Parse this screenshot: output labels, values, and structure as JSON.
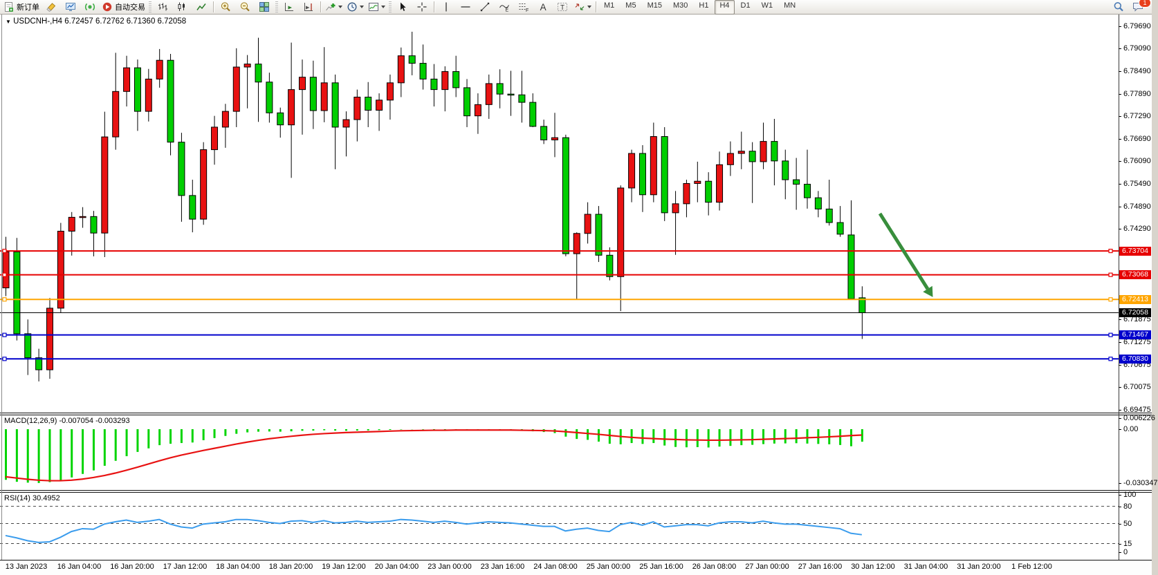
{
  "toolbar": {
    "groups": [
      {
        "items": [
          {
            "name": "new-order-button",
            "icon": "new-order-icon",
            "label": "新订单"
          },
          {
            "name": "eraser-button",
            "icon": "eraser-icon"
          },
          {
            "name": "expert-terminal-button",
            "icon": "expert-terminal-icon"
          },
          {
            "name": "signals-button",
            "icon": "signal-icon"
          },
          {
            "name": "auto-trading-button",
            "icon": "auto-trading-icon",
            "label": "自动交易"
          }
        ]
      },
      {
        "items": [
          {
            "name": "bar-chart-mode-button",
            "icon": "bar-chart-icon"
          },
          {
            "name": "candlestick-mode-button",
            "icon": "candlestick-icon"
          },
          {
            "name": "line-chart-mode-button",
            "icon": "line-chart-icon"
          }
        ]
      },
      {
        "items": [
          {
            "name": "zoom-in-button",
            "icon": "zoom-in-icon"
          },
          {
            "name": "zoom-out-button",
            "icon": "zoom-out-icon"
          },
          {
            "name": "tile-windows-button",
            "icon": "tile-windows-icon"
          }
        ]
      },
      {
        "items": [
          {
            "name": "auto-scroll-button",
            "icon": "auto-scroll-icon"
          },
          {
            "name": "chart-shift-button",
            "icon": "chart-shift-icon"
          }
        ]
      },
      {
        "items": [
          {
            "name": "indicators-button",
            "icon": "indicators-icon",
            "dropdown": true
          },
          {
            "name": "periods-button",
            "icon": "clock-icon",
            "dropdown": true
          },
          {
            "name": "templates-button",
            "icon": "template-icon",
            "dropdown": true
          }
        ]
      },
      {
        "items": [
          {
            "name": "cursor-tool-button",
            "icon": "cursor-icon"
          },
          {
            "name": "crosshair-tool-button",
            "icon": "crosshair-icon"
          }
        ]
      },
      {
        "items": [
          {
            "name": "vertical-line-tool-button",
            "icon": "vline-icon"
          },
          {
            "name": "horizontal-line-tool-button",
            "icon": "hline-icon"
          },
          {
            "name": "trendline-tool-button",
            "icon": "trendline-icon"
          },
          {
            "name": "equidistant-channel-tool-button",
            "icon": "channel-icon"
          },
          {
            "name": "fibonacci-tool-button",
            "icon": "fibonacci-icon"
          },
          {
            "name": "text-tool-button",
            "icon": "text-icon"
          },
          {
            "name": "label-tool-button",
            "icon": "label-icon"
          },
          {
            "name": "arrows-tool-button",
            "icon": "arrows-icon",
            "dropdown": true
          }
        ]
      }
    ],
    "timeframes": [
      "M1",
      "M5",
      "M15",
      "M30",
      "H1",
      "H4",
      "D1",
      "W1",
      "MN"
    ],
    "active_timeframe": "H4",
    "notification_count": "1"
  },
  "chart": {
    "symbol": "USDCNH-,H4",
    "ohlc_line": "6.72457 6.72762 6.71360 6.72058",
    "macd_label": "MACD(12,26,9)",
    "macd_values": "-0.007054 -0.003293",
    "rsi_label": "RSI(14)",
    "rsi_value": "30.4952",
    "colors": {
      "bull": "#e81212",
      "bear": "#00ce00",
      "wick": "#000000",
      "macd_hist": "#00d400",
      "macd_signal": "#e81212",
      "rsi_line": "#3a9ced",
      "line_red": "#e60000",
      "line_orange": "#ffa500",
      "line_blue": "#0000cc",
      "current_price_line": "#000000",
      "arrow": "#388e3c"
    }
  },
  "chart_data": {
    "type": "candlestick",
    "title": "USDCNH- H4",
    "x_axis_labels": [
      "13 Jan 2023",
      "16 Jan 04:00",
      "16 Jan 20:00",
      "17 Jan 12:00",
      "18 Jan 04:00",
      "18 Jan 20:00",
      "19 Jan 12:00",
      "20 Jan 04:00",
      "23 Jan 00:00",
      "23 Jan 16:00",
      "24 Jan 08:00",
      "25 Jan 00:00",
      "25 Jan 16:00",
      "26 Jan 08:00",
      "27 Jan 00:00",
      "27 Jan 16:00",
      "30 Jan 12:00",
      "31 Jan 04:00",
      "31 Jan 20:00",
      "1 Feb 12:00"
    ],
    "price_axis_ticks": [
      6.7969,
      6.7909,
      6.7849,
      6.7789,
      6.7729,
      6.7669,
      6.7609,
      6.7549,
      6.7489,
      6.7429,
      6.71875,
      6.71275,
      6.70675,
      6.70075,
      6.69475
    ],
    "price_axis_tick_labels": [
      "6.79690",
      "6.79090",
      "6.78490",
      "6.77890",
      "6.77290",
      "6.76690",
      "6.76090",
      "6.75490",
      "6.74890",
      "6.74290",
      "6.71875",
      "6.71275",
      "6.70675",
      "6.70075",
      "6.69475"
    ],
    "ylim": [
      6.694,
      6.7998
    ],
    "grid": false,
    "hlines": [
      {
        "price": 6.73704,
        "label": "6.73704",
        "color": "#e60000",
        "width": 2
      },
      {
        "price": 6.73068,
        "label": "6.73068",
        "color": "#e60000",
        "width": 2
      },
      {
        "price": 6.72413,
        "label": "6.72413",
        "color": "#ffa500",
        "width": 2
      },
      {
        "price": 6.71467,
        "label": "6.71467",
        "color": "#0000cc",
        "width": 2
      },
      {
        "price": 6.7083,
        "label": "6.70830",
        "color": "#0000cc",
        "width": 2
      }
    ],
    "current_price": {
      "price": 6.72058,
      "label": "6.72058",
      "color": "#000000"
    },
    "last_candle": {
      "open": 6.72457,
      "high": 6.72762,
      "low": 6.7136,
      "close": 6.72058
    },
    "arrow_annotation": {
      "x1": 1272,
      "y1": 308,
      "x2": 1341,
      "y2": 417,
      "color": "#388e3c"
    },
    "ohlc": [
      [
        6.7272,
        6.7408,
        6.725,
        6.7368
      ],
      [
        6.7368,
        6.7405,
        6.7132,
        6.715
      ],
      [
        6.715,
        6.7188,
        6.704,
        6.7086
      ],
      [
        6.7086,
        6.711,
        6.7023,
        6.7054
      ],
      [
        6.7054,
        6.7245,
        6.703,
        6.7218
      ],
      [
        6.7218,
        6.7445,
        6.7205,
        6.7423
      ],
      [
        6.7423,
        6.7474,
        6.7358,
        6.746
      ],
      [
        6.746,
        6.7487,
        6.7432,
        6.7462
      ],
      [
        6.7462,
        6.7477,
        6.7356,
        6.7418
      ],
      [
        6.7418,
        6.7741,
        6.7354,
        6.7674
      ],
      [
        6.7674,
        6.7898,
        6.764,
        6.7795
      ],
      [
        6.7795,
        6.789,
        6.7755,
        6.7858
      ],
      [
        6.7858,
        6.788,
        6.769,
        6.7742
      ],
      [
        6.7742,
        6.7855,
        6.7715,
        6.7828
      ],
      [
        6.7828,
        6.7908,
        6.7805,
        6.7878
      ],
      [
        6.7878,
        6.7895,
        6.7625,
        6.766
      ],
      [
        6.766,
        6.7685,
        6.7448,
        6.7518
      ],
      [
        6.7518,
        6.756,
        6.742,
        6.7455
      ],
      [
        6.7455,
        6.766,
        6.744,
        6.764
      ],
      [
        6.764,
        6.773,
        6.76,
        6.77
      ],
      [
        6.77,
        6.7762,
        6.7645,
        6.7742
      ],
      [
        6.7742,
        6.791,
        6.77,
        6.786
      ],
      [
        6.786,
        6.7892,
        6.775,
        6.7868
      ],
      [
        6.7868,
        6.7938,
        6.7714,
        6.782
      ],
      [
        6.782,
        6.7845,
        6.7712,
        6.7738
      ],
      [
        6.7738,
        6.7752,
        6.7672,
        6.7706
      ],
      [
        6.7706,
        6.7925,
        6.7565,
        6.78
      ],
      [
        6.78,
        6.788,
        6.768,
        6.7833
      ],
      [
        6.7833,
        6.7877,
        6.7695,
        6.7744
      ],
      [
        6.7744,
        6.7913,
        6.7713,
        6.7818
      ],
      [
        6.7818,
        6.784,
        6.7588,
        6.77
      ],
      [
        6.77,
        6.7742,
        6.7622,
        6.772
      ],
      [
        6.772,
        6.78,
        6.7662,
        6.778
      ],
      [
        6.778,
        6.782,
        6.77,
        6.7745
      ],
      [
        6.7745,
        6.779,
        6.769,
        6.7772
      ],
      [
        6.7772,
        6.784,
        6.772,
        6.7818
      ],
      [
        6.7818,
        6.7912,
        6.778,
        6.789
      ],
      [
        6.789,
        6.7954,
        6.7838,
        6.787
      ],
      [
        6.787,
        6.792,
        6.78,
        6.7828
      ],
      [
        6.7828,
        6.7868,
        6.7755,
        6.78
      ],
      [
        6.78,
        6.7862,
        6.7742,
        6.7848
      ],
      [
        6.7848,
        6.789,
        6.778,
        6.7805
      ],
      [
        6.7805,
        6.7828,
        6.77,
        6.773
      ],
      [
        6.773,
        6.779,
        6.7682,
        6.776
      ],
      [
        6.776,
        6.784,
        6.7722,
        6.7816
      ],
      [
        6.7816,
        6.7854,
        6.775,
        6.7788
      ],
      [
        6.7788,
        6.785,
        6.773,
        6.7786
      ],
      [
        6.7786,
        6.785,
        6.7712,
        6.7766
      ],
      [
        6.7766,
        6.779,
        6.77,
        6.7702
      ],
      [
        6.7702,
        6.772,
        6.7655,
        6.7666
      ],
      [
        6.7666,
        6.7738,
        6.762,
        6.7672
      ],
      [
        6.7672,
        6.768,
        6.7356,
        6.7363
      ],
      [
        6.7363,
        6.742,
        6.7241,
        6.7417
      ],
      [
        6.7417,
        6.75,
        6.739,
        6.7468
      ],
      [
        6.7468,
        6.749,
        6.7341,
        6.7359
      ],
      [
        6.7359,
        6.738,
        6.7292,
        6.7302
      ],
      [
        6.7302,
        6.7545,
        6.721,
        6.7538
      ],
      [
        6.7538,
        6.764,
        6.75,
        6.763
      ],
      [
        6.763,
        6.7652,
        6.7474,
        6.752
      ],
      [
        6.752,
        6.7712,
        6.75,
        6.7675
      ],
      [
        6.7675,
        6.77,
        6.745,
        6.7472
      ],
      [
        6.7472,
        6.753,
        6.736,
        6.7496
      ],
      [
        6.7496,
        6.756,
        6.746,
        6.755
      ],
      [
        6.755,
        6.7608,
        6.75,
        6.7556
      ],
      [
        6.7556,
        6.758,
        6.7465,
        6.75
      ],
      [
        6.75,
        6.7635,
        6.7478,
        6.76
      ],
      [
        6.76,
        6.7662,
        6.757,
        6.763
      ],
      [
        6.763,
        6.7688,
        6.7588,
        6.7636
      ],
      [
        6.7636,
        6.766,
        6.7498,
        6.7608
      ],
      [
        6.7608,
        6.7712,
        6.7588,
        6.7662
      ],
      [
        6.7662,
        6.7722,
        6.7545,
        6.761
      ],
      [
        6.761,
        6.764,
        6.7508,
        6.756
      ],
      [
        6.756,
        6.7618,
        6.748,
        6.7548
      ],
      [
        6.7548,
        6.764,
        6.7483,
        6.7512
      ],
      [
        6.7512,
        6.753,
        6.746,
        6.7482
      ],
      [
        6.7482,
        6.756,
        6.7438,
        6.7446
      ],
      [
        6.7446,
        6.749,
        6.7408,
        6.7415
      ],
      [
        6.7413,
        6.7505,
        6.724,
        6.7243
      ],
      [
        6.72457,
        6.72762,
        6.7136,
        6.72058
      ]
    ],
    "indicators": {
      "macd": {
        "label": "MACD(12,26,9)",
        "current_main": -0.007054,
        "current_signal": -0.003293,
        "scale_ticks": [
          0.006226,
          0.0,
          -0.030347
        ],
        "scale_tick_labels": [
          "0.006226",
          "0.00",
          "-0.030347"
        ],
        "histogram": [
          -0.0285,
          -0.0296,
          -0.0301,
          -0.0303,
          -0.0298,
          -0.0288,
          -0.0272,
          -0.0252,
          -0.0232,
          -0.0206,
          -0.0178,
          -0.0152,
          -0.0128,
          -0.0108,
          -0.009,
          -0.0082,
          -0.0078,
          -0.0075,
          -0.0062,
          -0.005,
          -0.0038,
          -0.0026,
          -0.0018,
          -0.0014,
          -0.0013,
          -0.0014,
          -0.0012,
          -0.0009,
          -0.0008,
          -0.0006,
          -0.0008,
          -0.0009,
          -0.0008,
          -0.0007,
          -0.0005,
          -0.0004,
          -0.0002,
          -0.0001,
          -0.0002,
          -0.0003,
          -0.0003,
          -0.0004,
          -0.0006,
          -0.0007,
          -0.0005,
          -0.0004,
          -0.0005,
          -0.0008,
          -0.0012,
          -0.0016,
          -0.0022,
          -0.0042,
          -0.0055,
          -0.006,
          -0.007,
          -0.0082,
          -0.0085,
          -0.0078,
          -0.0083,
          -0.0078,
          -0.0092,
          -0.01,
          -0.0102,
          -0.0101,
          -0.0103,
          -0.0098,
          -0.0094,
          -0.009,
          -0.0088,
          -0.0084,
          -0.0081,
          -0.008,
          -0.0079,
          -0.0081,
          -0.0083,
          -0.0085,
          -0.0089,
          -0.0096,
          -0.007054
        ],
        "signal": [
          -0.0268,
          -0.0275,
          -0.0282,
          -0.0287,
          -0.029,
          -0.029,
          -0.0287,
          -0.0281,
          -0.0272,
          -0.0261,
          -0.0247,
          -0.0231,
          -0.0214,
          -0.0196,
          -0.0178,
          -0.0161,
          -0.0146,
          -0.0133,
          -0.012,
          -0.0108,
          -0.0096,
          -0.0084,
          -0.0073,
          -0.0063,
          -0.0054,
          -0.0047,
          -0.004,
          -0.0034,
          -0.0029,
          -0.0025,
          -0.0022,
          -0.0019,
          -0.0017,
          -0.0015,
          -0.0013,
          -0.0011,
          -0.0009,
          -0.0008,
          -0.0007,
          -0.0006,
          -0.0006,
          -0.0005,
          -0.0005,
          -0.0005,
          -0.0005,
          -0.0005,
          -0.0005,
          -0.0006,
          -0.0007,
          -0.0008,
          -0.001,
          -0.0014,
          -0.0019,
          -0.0024,
          -0.0029,
          -0.0035,
          -0.0041,
          -0.0046,
          -0.005,
          -0.0053,
          -0.0056,
          -0.0058,
          -0.006,
          -0.0061,
          -0.0062,
          -0.0062,
          -0.0061,
          -0.006,
          -0.0059,
          -0.0057,
          -0.0055,
          -0.0053,
          -0.0051,
          -0.0048,
          -0.0046,
          -0.0043,
          -0.004,
          -0.0036,
          -0.003293
        ]
      },
      "rsi": {
        "label": "RSI(14)",
        "current": 30.4952,
        "levels": [
          80,
          50,
          15
        ],
        "scale_ticks": [
          100,
          80,
          50,
          15,
          0
        ],
        "scale_tick_labels": [
          "100",
          "80",
          "50",
          "15",
          "0"
        ],
        "values": [
          29,
          25,
          20,
          17,
          18,
          26,
          36,
          41,
          40,
          49,
          53,
          56,
          52,
          54,
          57,
          49,
          44,
          42,
          49,
          51,
          53,
          57,
          57,
          55,
          52,
          50,
          54,
          55,
          52,
          55,
          51,
          52,
          54,
          52,
          53,
          54,
          57,
          56,
          54,
          52,
          54,
          52,
          49,
          51,
          53,
          52,
          51,
          49,
          47,
          45,
          45,
          37,
          40,
          42,
          38,
          36,
          48,
          52,
          47,
          53,
          44,
          46,
          48,
          48,
          46,
          51,
          53,
          53,
          51,
          54,
          51,
          49,
          49,
          47,
          45,
          43,
          41,
          33,
          30.4952
        ]
      }
    }
  }
}
